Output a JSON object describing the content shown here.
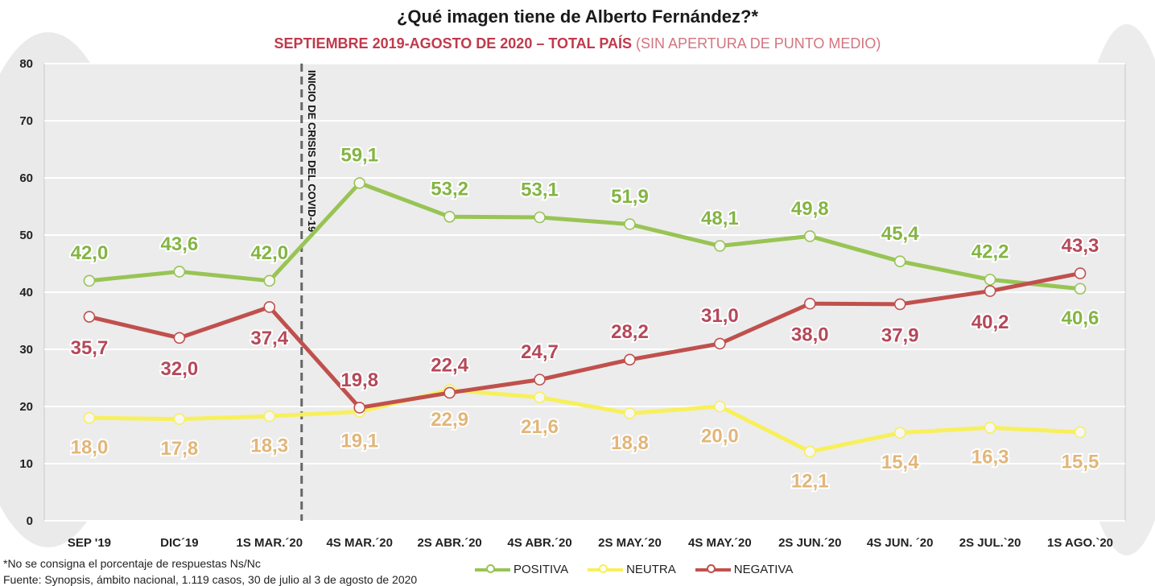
{
  "title": "¿Qué imagen tiene de Alberto Fernández?*",
  "subtitle_main": "SEPTIEMBRE 2019-AGOSTO DE 2020 – TOTAL PAÍS",
  "subtitle_extra": "(SIN APERTURA DE PUNTO MEDIO)",
  "footnote": "*No se consigna el porcentaje de respuestas Ns/Nc",
  "source": "Fuente: Synopsis, ámbito nacional, 1.119 casos, 30 de julio al 3 de agosto de 2020",
  "colors": {
    "positiva": "#98c454",
    "positiva_label": "#84b544",
    "neutra": "#f7f05c",
    "neutra_label": "#e2b67a",
    "negativa": "#c0504d",
    "negativa_label": "#b5495a",
    "grid": "#dddddd",
    "plot_bg": "#ececec"
  },
  "chart_data": {
    "type": "line",
    "categories": [
      "SEP '19",
      "DIC´19",
      "1S MAR.´20",
      "4S MAR.´20",
      "2S ABR.´20",
      "4S ABR.´20",
      "2S MAY.´20",
      "4S MAY.´20",
      "2S JUN.´20",
      "4S JUN. ´20",
      "2S JUL.`20",
      "1S AGO.`20"
    ],
    "ylim": [
      0,
      80
    ],
    "yticks": [
      "0",
      "10",
      "20",
      "30",
      "40",
      "50",
      "60",
      "70",
      "80"
    ],
    "grid": true,
    "legend_position": "bottom",
    "annotation": "INICIO DE CRISIS DEL COVID-19",
    "series": [
      {
        "name": "POSITIVA",
        "values": [
          42.0,
          43.6,
          42.0,
          59.1,
          53.2,
          53.1,
          51.9,
          48.1,
          49.8,
          45.4,
          42.2,
          40.6
        ],
        "labels": [
          "42,0",
          "43,6",
          "42,0",
          "59,1",
          "53,2",
          "53,1",
          "51,9",
          "48,1",
          "49,8",
          "45,4",
          "42,2",
          "40,6"
        ]
      },
      {
        "name": "NEUTRA",
        "values": [
          18.0,
          17.8,
          18.3,
          19.1,
          22.9,
          21.6,
          18.8,
          20.0,
          12.1,
          15.4,
          16.3,
          15.5
        ],
        "labels": [
          "18,0",
          "17,8",
          "18,3",
          "19,1",
          "22,9",
          "21,6",
          "18,8",
          "20,0",
          "12,1",
          "15,4",
          "16,3",
          "15,5"
        ]
      },
      {
        "name": "NEGATIVA",
        "values": [
          35.7,
          32.0,
          37.4,
          19.8,
          22.4,
          24.7,
          28.2,
          31.0,
          38.0,
          37.9,
          40.2,
          43.3
        ],
        "labels": [
          "35,7",
          "32,0",
          "37,4",
          "19,8",
          "22,4",
          "24,7",
          "28,2",
          "31,0",
          "38,0",
          "37,9",
          "40,2",
          "43,3"
        ]
      }
    ]
  },
  "legend": [
    "POSITIVA",
    "NEUTRA",
    "NEGATIVA"
  ]
}
